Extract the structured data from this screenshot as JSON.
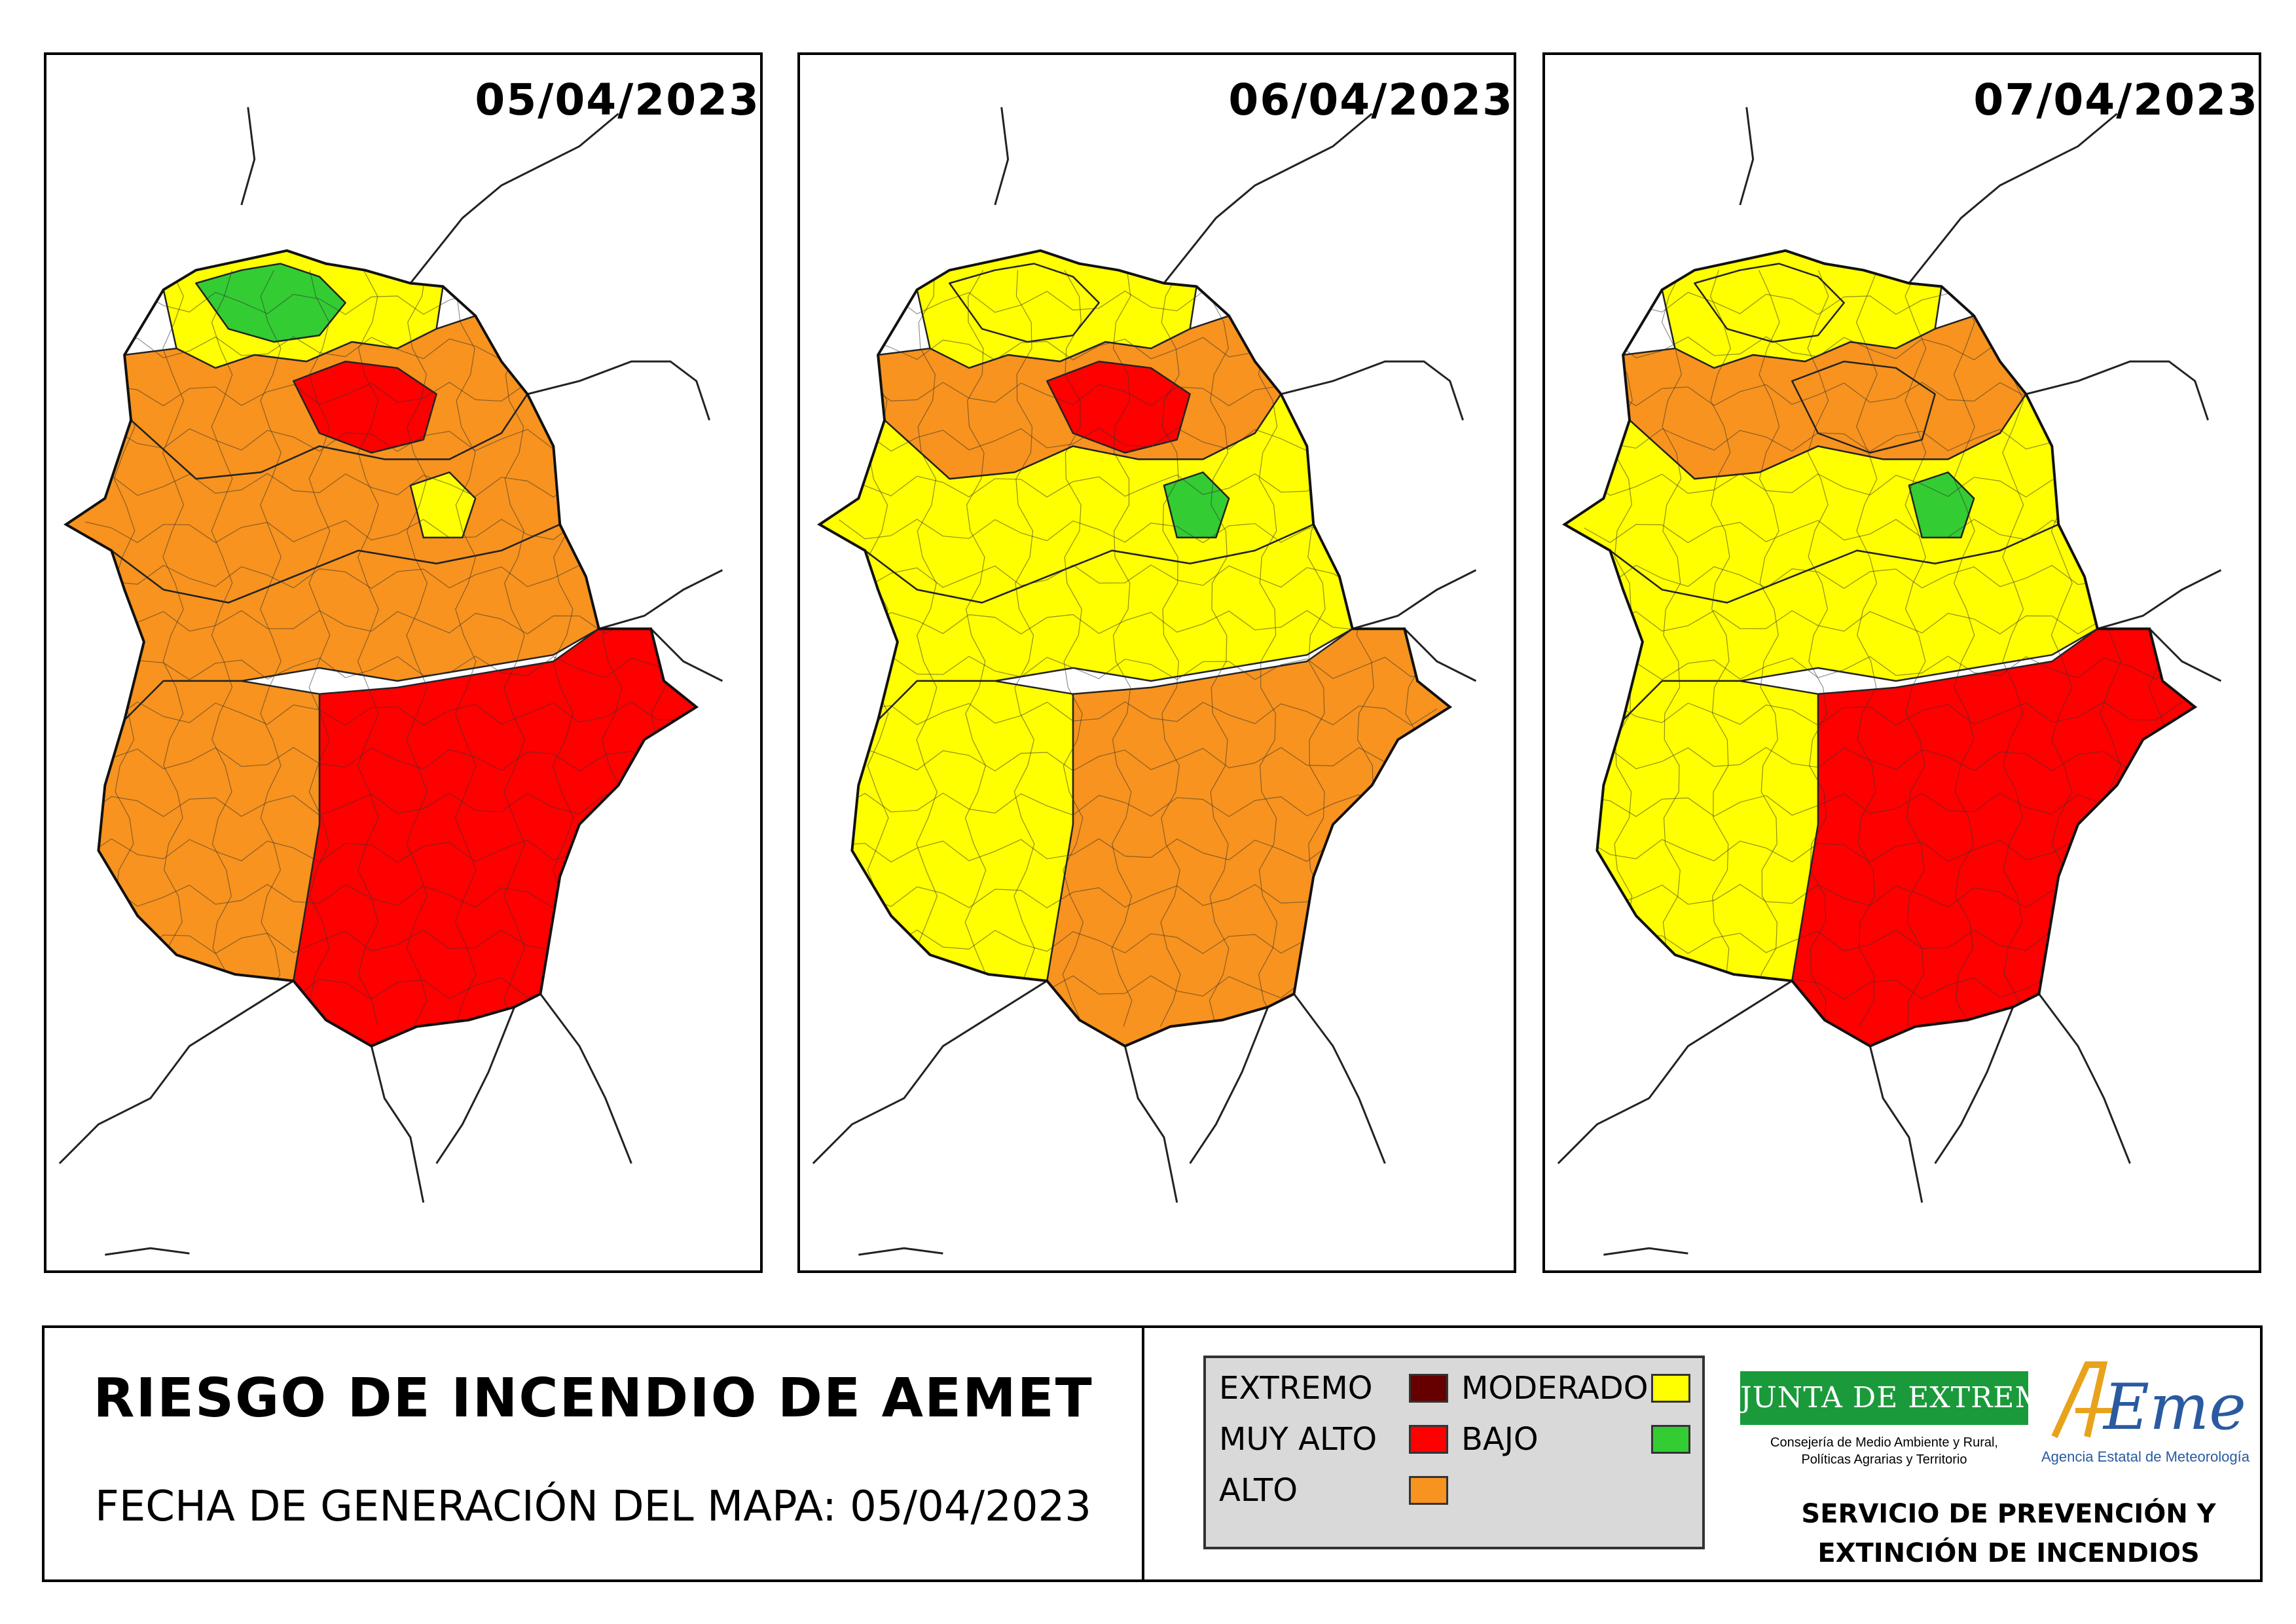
{
  "maps": [
    {
      "date": "05/04/2023",
      "zones": [
        "yellow",
        "green",
        "orange",
        "red",
        "orange",
        "yellow",
        "orange",
        "red",
        "orange"
      ]
    },
    {
      "date": "06/04/2023",
      "zones": [
        "yellow",
        "yellow",
        "orange",
        "red",
        "yellow",
        "green",
        "yellow",
        "orange",
        "yellow"
      ]
    },
    {
      "date": "07/04/2023",
      "zones": [
        "yellow",
        "yellow",
        "orange",
        "orange",
        "yellow",
        "green",
        "yellow",
        "red",
        "yellow"
      ]
    }
  ],
  "title": "RIESGO DE INCENDIO DE AEMET",
  "generation_date": "FECHA DE GENERACIÓN DEL MAPA: 05/04/2023",
  "legend": {
    "extremo": "EXTREMO",
    "muy_alto": "MUY ALTO",
    "alto": "ALTO",
    "moderado": "MODERADO",
    "bajo": "BAJO"
  },
  "colors": {
    "extremo": "#660000",
    "red": "#ff0000",
    "orange": "#f7931e",
    "yellow": "#ffff00",
    "green": "#33cc33",
    "junta_green": "#1a9a3a"
  },
  "logos": {
    "junta_name": "JUNTA DE EXTREMADURA",
    "junta_consejeria_1": "Consejería de Medio Ambiente y Rural,",
    "junta_consejeria_2": "Políticas Agrarias y Territorio",
    "aemet_name": "AEMet",
    "aemet_subtitle": "Agencia Estatal de Meteorología"
  },
  "service": {
    "line1": "SERVICIO DE PREVENCIÓN Y",
    "line2": "EXTINCIÓN DE INCENDIOS"
  }
}
